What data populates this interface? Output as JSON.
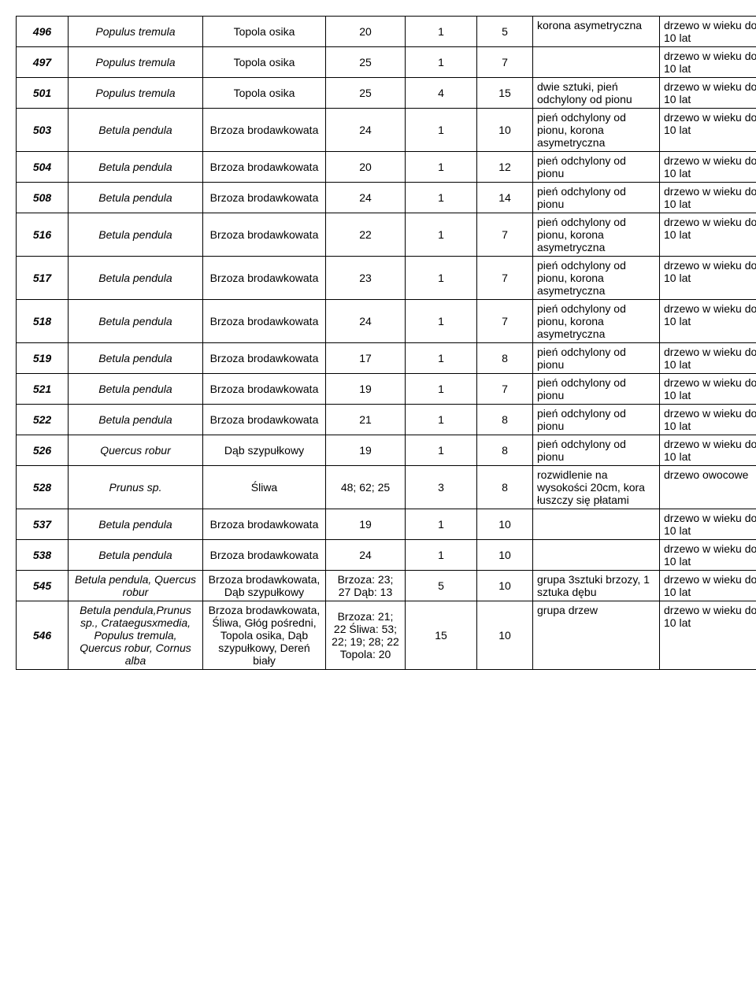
{
  "table": {
    "columns": [
      "id",
      "latin",
      "polish",
      "v1",
      "v2",
      "v3",
      "note",
      "age"
    ],
    "column_classes": [
      "col-id",
      "col-latin",
      "col-pl",
      "col-v1",
      "col-v2",
      "col-v3",
      "col-note",
      "col-age"
    ],
    "rows": [
      {
        "id": "496",
        "latin": "Populus tremula",
        "polish": "Topola osika",
        "v1": "20",
        "v2": "1",
        "v3": "5",
        "note": "korona asymetryczna",
        "age": "drzewo w wieku do 10 lat"
      },
      {
        "id": "497",
        "latin": "Populus tremula",
        "polish": "Topola osika",
        "v1": "25",
        "v2": "1",
        "v3": "7",
        "note": "",
        "age": "drzewo w wieku do 10 lat"
      },
      {
        "id": "501",
        "latin": "Populus tremula",
        "polish": "Topola osika",
        "v1": "25",
        "v2": "4",
        "v3": "15",
        "note": "dwie sztuki, pień odchylony od pionu",
        "age": "drzewo w wieku do 10 lat"
      },
      {
        "id": "503",
        "latin": "Betula pendula",
        "polish": "Brzoza brodawkowata",
        "v1": "24",
        "v2": "1",
        "v3": "10",
        "note": "pień odchylony od pionu, korona asymetryczna",
        "age": "drzewo w wieku do 10 lat"
      },
      {
        "id": "504",
        "latin": "Betula pendula",
        "polish": "Brzoza brodawkowata",
        "v1": "20",
        "v2": "1",
        "v3": "12",
        "note": "pień odchylony od pionu",
        "age": "drzewo w wieku do 10 lat"
      },
      {
        "id": "508",
        "latin": "Betula pendula",
        "polish": "Brzoza brodawkowata",
        "v1": "24",
        "v2": "1",
        "v3": "14",
        "note": "pień odchylony od pionu",
        "age": "drzewo w wieku do 10 lat"
      },
      {
        "id": "516",
        "latin": "Betula pendula",
        "polish": "Brzoza brodawkowata",
        "v1": "22",
        "v2": "1",
        "v3": "7",
        "note": "pień odchylony od pionu, korona asymetryczna",
        "age": "drzewo w wieku do 10 lat"
      },
      {
        "id": "517",
        "latin": "Betula pendula",
        "polish": "Brzoza brodawkowata",
        "v1": "23",
        "v2": "1",
        "v3": "7",
        "note": "pień odchylony od pionu, korona asymetryczna",
        "age": "drzewo w wieku do 10 lat"
      },
      {
        "id": "518",
        "latin": "Betula pendula",
        "polish": "Brzoza brodawkowata",
        "v1": "24",
        "v2": "1",
        "v3": "7",
        "note": "pień odchylony od pionu, korona asymetryczna",
        "age": "drzewo w wieku do 10 lat"
      },
      {
        "id": "519",
        "latin": "Betula pendula",
        "polish": "Brzoza brodawkowata",
        "v1": "17",
        "v2": "1",
        "v3": "8",
        "note": "pień odchylony od pionu",
        "age": "drzewo w wieku do 10 lat"
      },
      {
        "id": "521",
        "latin": "Betula pendula",
        "polish": "Brzoza brodawkowata",
        "v1": "19",
        "v2": "1",
        "v3": "7",
        "note": "pień odchylony od pionu",
        "age": "drzewo w wieku do 10 lat"
      },
      {
        "id": "522",
        "latin": "Betula pendula",
        "polish": "Brzoza brodawkowata",
        "v1": "21",
        "v2": "1",
        "v3": "8",
        "note": "pień odchylony od pionu",
        "age": "drzewo w wieku do 10 lat"
      },
      {
        "id": "526",
        "latin": "Quercus robur",
        "polish": "Dąb szypułkowy",
        "v1": "19",
        "v2": "1",
        "v3": "8",
        "note": "pień odchylony od pionu",
        "age": "drzewo w wieku do 10 lat"
      },
      {
        "id": "528",
        "latin": "Prunus sp.",
        "polish": "Śliwa",
        "v1": "48; 62; 25",
        "v2": "3",
        "v3": "8",
        "note": "rozwidlenie na wysokości 20cm, kora łuszczy się płatami",
        "age": "drzewo owocowe"
      },
      {
        "id": "537",
        "latin": "Betula pendula",
        "polish": "Brzoza brodawkowata",
        "v1": "19",
        "v2": "1",
        "v3": "10",
        "note": "",
        "age": "drzewo w wieku do 10 lat"
      },
      {
        "id": "538",
        "latin": "Betula pendula",
        "polish": "Brzoza brodawkowata",
        "v1": "24",
        "v2": "1",
        "v3": "10",
        "note": "",
        "age": "drzewo w wieku do 10 lat"
      },
      {
        "id": "545",
        "latin": "Betula pendula, Quercus robur",
        "polish": "Brzoza brodawkowata, Dąb szypułkowy",
        "v1": "Brzoza: 23; 27 Dąb: 13",
        "v2": "5",
        "v3": "10",
        "note": "grupa 3sztuki brzozy, 1 sztuka dębu",
        "age": "drzewo w wieku do 10 lat"
      },
      {
        "id": "546",
        "latin": "Betula pendula,Prunus sp., Crataegusxmedia, Populus tremula, Quercus robur, Cornus alba",
        "polish": "Brzoza brodawkowata, Śliwa, Głóg pośredni, Topola osika, Dąb szypułkowy, Dereń biały",
        "v1": "Brzoza: 21; 22 Śliwa: 53; 22; 19; 28; 22 Topola: 20",
        "v2": "15",
        "v3": "10",
        "note": "grupa drzew",
        "age": "drzewo w wieku do 10 lat"
      }
    ]
  }
}
